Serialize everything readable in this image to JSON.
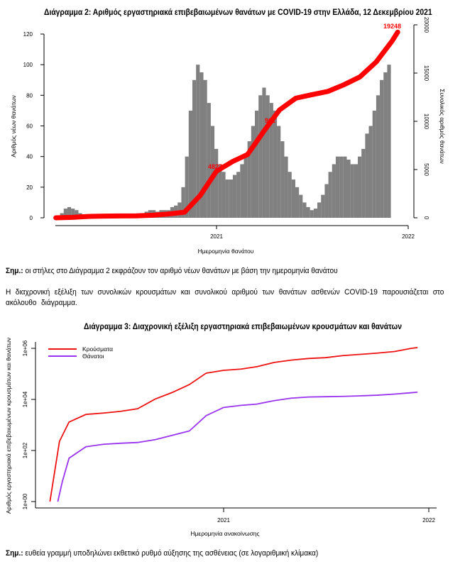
{
  "notes": {
    "chart2_note_bold": "Σημ.:",
    "chart2_note": " οι στήλες στο Διάγραμμα 2 εκφράζουν τον αριθμό νέων θανάτων με βάση την ημερομηνία θανάτου",
    "paragraph": "Η διαχρονική εξέλιξη των συνολικών κρουσμάτων και συνολικού αριθμού των θανάτων ασθενών COVID-19 παρουσιάζεται στο ακόλουθο διάγραμμα.",
    "chart3_note_bold": "Σημ.:",
    "chart3_note": " ευθεία γραμμή υποδηλώνει εκθετικό ρυθμό αύξησης της ασθένειας (σε λογαριθμική κλίμακα)"
  },
  "chart_data": [
    {
      "type": "bar",
      "title": "Διάγραμμα 2: Αριθμός εργαστηριακά επιβεβαιωμένων θανάτων με COVID-19 στην Ελλάδα, 12 Δεκεμβρίου 2021",
      "xlabel": "Ημερομηνία θανάτου",
      "ylabel": "Αριθμός νέων θανάτων",
      "ylabel_right": "Συνολικός αριθμός θανάτων",
      "ylim": [
        0,
        120
      ],
      "ylim_right": [
        0,
        20000
      ],
      "yticks": [
        "0",
        "20",
        "40",
        "60",
        "80",
        "100",
        "120"
      ],
      "yticks_right": [
        "0",
        "5000",
        "10000",
        "15000",
        "20000"
      ],
      "xticks": [
        "2021",
        "2022"
      ],
      "bar_color": "#808080",
      "line_color": "#ff0000",
      "series": [
        {
          "type": "bar",
          "x_start": "2020-03-02",
          "interval_days": 7,
          "values": [
            0.5,
            3,
            6,
            7,
            6,
            5,
            3,
            2,
            2,
            1,
            1,
            1,
            1,
            1,
            1,
            0.5,
            0.5,
            0.5,
            0.5,
            1,
            1,
            1,
            2,
            3,
            4,
            5,
            5,
            4,
            5,
            5,
            5,
            7,
            8,
            10,
            20,
            40,
            70,
            90,
            100,
            95,
            90,
            75,
            60,
            45,
            35,
            30,
            25,
            25,
            28,
            30,
            35,
            40,
            50,
            60,
            70,
            80,
            85,
            80,
            75,
            70,
            60,
            50,
            40,
            30,
            25,
            20,
            15,
            10,
            7,
            5,
            6,
            10,
            15,
            22,
            30,
            35,
            40,
            40,
            40,
            38,
            35,
            35,
            40,
            45,
            55,
            60,
            70,
            80,
            90,
            95,
            100
          ]
        },
        {
          "type": "line",
          "axis": "right",
          "x": [
            "2020-03-01",
            "2020-04-01",
            "2020-05-01",
            "2020-06-01",
            "2020-07-01",
            "2020-08-01",
            "2020-09-01",
            "2020-10-01",
            "2020-11-01",
            "2020-12-01",
            "2021-01-01",
            "2021-02-01",
            "2021-03-01",
            "2021-04-01",
            "2021-05-01",
            "2021-06-01",
            "2021-07-01",
            "2021-08-01",
            "2021-09-01",
            "2021-10-01",
            "2021-11-01",
            "2021-12-01",
            "2021-12-12"
          ],
          "values": [
            0,
            50,
            140,
            175,
            192,
            206,
            266,
            390,
            581,
            2321,
            4838,
            5846,
            6557,
            8964,
            11180,
            12400,
            12750,
            13100,
            13800,
            14600,
            16150,
            18300,
            19248
          ]
        }
      ],
      "annotations": [
        "4827",
        "961",
        "19248"
      ]
    },
    {
      "type": "line",
      "title": "Διάγραμμα 3: Διαχρονική εξέλιξη εργαστηριακά επιβεβαιωμένων κρουσμάτων και θανάτων",
      "xlabel": "Ημερομηνία ανακοίνωσης",
      "ylabel": "Αριθμός εργαστηριακά επιβεβαιωμένων κρουσμάτων και θανάτων",
      "yscale": "log",
      "ylim": [
        1,
        1000000
      ],
      "yticks": [
        "1e+00",
        "1e+02",
        "1e+04",
        "1e+06"
      ],
      "xticks": [
        "2021",
        "2022"
      ],
      "legend": "top-left",
      "series": [
        {
          "name": "Κρούσματα",
          "color": "#ee1111",
          "x": [
            "2020-02-27",
            "2020-03-15",
            "2020-04-01",
            "2020-05-01",
            "2020-06-01",
            "2020-07-01",
            "2020-08-01",
            "2020-09-01",
            "2020-10-01",
            "2020-11-01",
            "2020-12-01",
            "2021-01-01",
            "2021-02-01",
            "2021-03-01",
            "2021-04-01",
            "2021-05-01",
            "2021-06-01",
            "2021-07-01",
            "2021-08-01",
            "2021-09-01",
            "2021-10-01",
            "2021-11-01",
            "2021-12-01",
            "2021-12-12"
          ],
          "values": [
            1,
            230,
            1300,
            2590,
            2920,
            3400,
            4300,
            10300,
            18500,
            38000,
            107000,
            138000,
            154000,
            191000,
            280000,
            345000,
            400000,
            430000,
            520000,
            580000,
            650000,
            750000,
            1000000,
            1070000
          ]
        },
        {
          "name": "Θάνατοι",
          "color": "#9933ee",
          "x": [
            "2020-03-12",
            "2020-03-20",
            "2020-04-01",
            "2020-05-01",
            "2020-06-01",
            "2020-07-01",
            "2020-08-01",
            "2020-09-01",
            "2020-10-01",
            "2020-11-01",
            "2020-12-01",
            "2021-01-01",
            "2021-02-01",
            "2021-03-01",
            "2021-04-01",
            "2021-05-01",
            "2021-06-01",
            "2021-07-01",
            "2021-08-01",
            "2021-09-01",
            "2021-10-01",
            "2021-11-01",
            "2021-12-01",
            "2021-12-12"
          ],
          "values": [
            1,
            6,
            50,
            140,
            175,
            192,
            206,
            266,
            390,
            581,
            2321,
            4838,
            5846,
            6557,
            8964,
            11180,
            12400,
            12750,
            13100,
            13800,
            14600,
            16150,
            18300,
            19248
          ]
        }
      ]
    }
  ]
}
